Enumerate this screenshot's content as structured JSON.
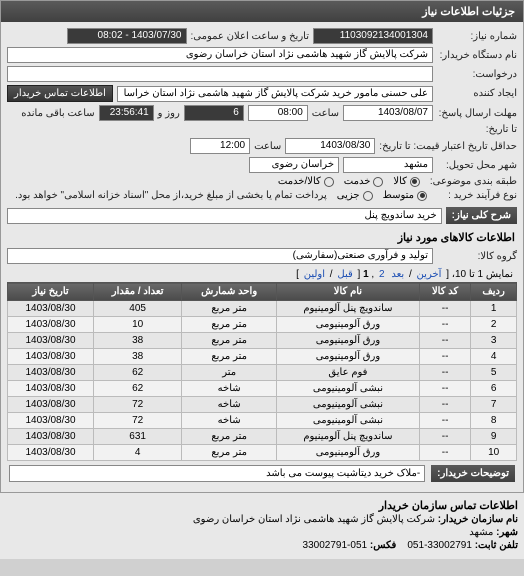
{
  "panel_title": "جزئیات اطلاعات نیاز",
  "fields": {
    "need_no_label": "شماره نیاز:",
    "need_no": "1103092134001304",
    "announce_label": "تاریخ و ساعت اعلان عمومی:",
    "announce_val": "1403/07/30 - 08:02",
    "org_label": "نام دستگاه خریدار:",
    "org_val": "شرکت پالایش گاز شهید هاشمی نژاد   استان خراسان رضوی",
    "requester_label": "درخواست:",
    "creator_label": "ایجاد کننده",
    "creator_val": "علی حسنی مامور خرید شرکت پالایش گاز شهید هاشمی نژاد   استان خراسا",
    "contact_btn": "اطلاعات تماس خریدار",
    "deadline_send_label": "مهلت ارسال پاسخ:",
    "deadline_date": "1403/08/07",
    "deadline_time_label": "ساعت",
    "deadline_time": "08:00",
    "remain_days": "6",
    "remain_and_label": "روز و",
    "remain_time": "23:56:41",
    "remain_suffix": "ساعت باقی مانده",
    "to_date_label": "تا تاریخ:",
    "credit_label": "حداقل تاریخ اعتبار قیمت: تا تاریخ:",
    "credit_date": "1403/08/30",
    "credit_time": "12:00",
    "delivery_city_label": "شهر محل تحویل:",
    "delivery_city": "مشهد",
    "delivery_prov_label": "خراسان رضوی",
    "category_label": "طبقه بندی موضوعی:",
    "cat_kala": "کالا",
    "cat_khadamat": "خدمت",
    "cat_both": "کالا/خدمت",
    "process_label": "نوع فرآیند خرید :",
    "proc_mid": "متوسط",
    "proc_part": "جزیی",
    "proc_note": "پرداخت تمام یا بخشی از مبلغ خرید،از محل \"اسناد خزانه اسلامی\" خواهد بود."
  },
  "need_title_label": "شرح کلی نیاز:",
  "need_title_val": "خرید ساندویچ پنل",
  "items_header": "اطلاعات کالاهای مورد نیاز",
  "group_label": "گروه کالا:",
  "group_val": "تولید و فرآوری صنعتی(سفارشی)",
  "pager": {
    "text_prefix": "نمایش 1 تا 10، [",
    "last": "آخرین",
    "next": "بعد",
    "p2": "2",
    "p1": "1",
    "prev": "قبل",
    "first": "اولین",
    "text_suffix": "]"
  },
  "table": {
    "headers": [
      "ردیف",
      "کد کالا",
      "نام کالا",
      "واحد شمارش",
      "تعداد / مقدار",
      "تاریخ نیاز"
    ],
    "rows": [
      [
        "1",
        "--",
        "ساندویچ پنل آلومینیوم",
        "متر مربع",
        "405",
        "1403/08/30"
      ],
      [
        "2",
        "--",
        "ورق آلومینیومی",
        "متر مربع",
        "10",
        "1403/08/30"
      ],
      [
        "3",
        "--",
        "ورق آلومینیومی",
        "متر مربع",
        "38",
        "1403/08/30"
      ],
      [
        "4",
        "--",
        "ورق آلومینیومی",
        "متر مربع",
        "38",
        "1403/08/30"
      ],
      [
        "5",
        "--",
        "فوم عایق",
        "متر",
        "62",
        "1403/08/30"
      ],
      [
        "6",
        "--",
        "نبشی آلومینیومی",
        "شاخه",
        "62",
        "1403/08/30"
      ],
      [
        "7",
        "--",
        "نبشی آلومینیومی",
        "شاخه",
        "72",
        "1403/08/30"
      ],
      [
        "8",
        "--",
        "نبشی آلومینیومی",
        "شاخه",
        "72",
        "1403/08/30"
      ],
      [
        "9",
        "--",
        "ساندویچ پنل آلومینیوم",
        "متر مربع",
        "631",
        "1403/08/30"
      ],
      [
        "10",
        "--",
        "ورق آلومینیومی",
        "متر مربع",
        "4",
        "1403/08/30"
      ]
    ]
  },
  "notes_label": "توضیحات خریدار:",
  "notes_val": "-ملاک خرید دیتاشیت پیوست می باشد",
  "footer": {
    "header": "اطلاعات تماس سازمان خریدار",
    "org_lbl": "نام سازمان خریدار:",
    "org_val": "شرکت پالایش گاز شهید هاشمی نژاد استان خراسان رضوی",
    "city_lbl": "شهر:",
    "city_val": "مشهد",
    "tel_lbl": "تلفن ثابت:",
    "tel_val": "33002791-051",
    "fax_lbl": "فکس:",
    "fax_val": "051-33002791"
  }
}
